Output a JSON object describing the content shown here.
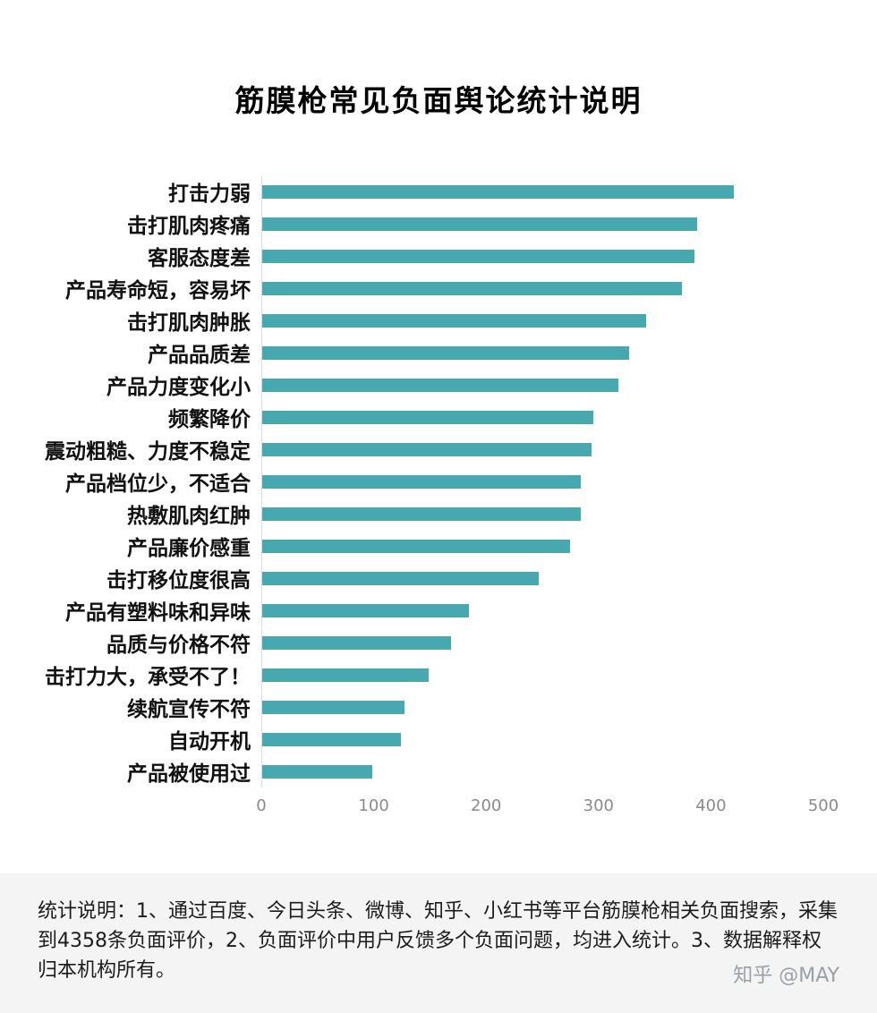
{
  "colors": {
    "bar": "#48a8b0",
    "axis_text": "#8a8a8a",
    "footer_bg": "#f4f4f5",
    "watermark": "#9aa0a6"
  },
  "chart_data": {
    "type": "bar",
    "orientation": "horizontal",
    "title": "筋膜枪常见负面舆论统计说明",
    "categories": [
      "打击力弱",
      "击打肌肉疼痛",
      "客服态度差",
      "产品寿命短，容易坏",
      "击打肌肉肿胀",
      "产品品质差",
      "产品力度变化小",
      "频繁降价",
      "震动粗糙、力度不稳定",
      "产品档位少，不适合",
      "热敷肌肉红肿",
      "产品廉价感重",
      "击打移位度很高",
      "产品有塑料味和异味",
      "品质与价格不符",
      "击打力大，承受不了！",
      "续航宣传不符",
      "自动开机",
      "产品被使用过"
    ],
    "values": [
      420,
      388,
      385,
      374,
      342,
      327,
      318,
      295,
      294,
      284,
      284,
      275,
      247,
      185,
      169,
      149,
      127,
      124,
      99
    ],
    "xlim": [
      0,
      500
    ],
    "xticks": [
      0,
      100,
      200,
      300,
      400,
      500
    ],
    "xlabel": "",
    "ylabel": "",
    "grid": false,
    "legend": null
  },
  "footer": {
    "note": "统计说明：1、通过百度、今日头条、微博、知乎、小红书等平台筋膜枪相关负面搜索，采集到4358条负面评价，2、负面评价中用户反馈多个负面问题，均进入统计。3、数据解释权归本机构所有。"
  },
  "watermark": {
    "text": "知乎 @MAY"
  }
}
